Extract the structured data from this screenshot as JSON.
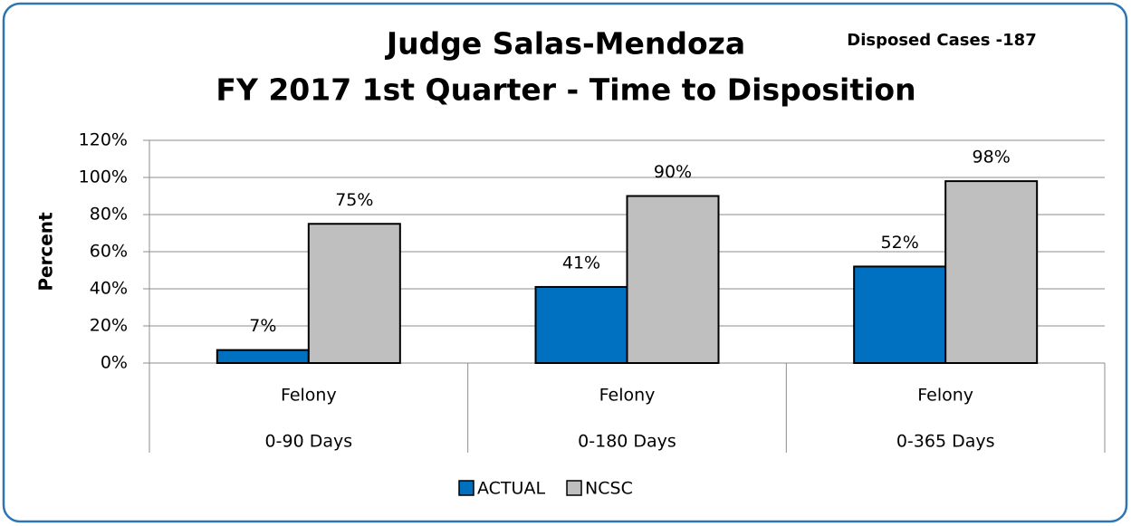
{
  "chart_data": {
    "type": "bar",
    "title": "Judge Salas-Mendoza",
    "subtitle": "FY 2017 1st Quarter - Time to Disposition",
    "annotation": "Disposed Cases -187",
    "y_label": "Percent",
    "categories": [
      [
        "Felony",
        "0-90 Days"
      ],
      [
        "Felony",
        "0-180 Days"
      ],
      [
        "Felony",
        "0-365 Days"
      ]
    ],
    "series": [
      {
        "name": "ACTUAL",
        "color": "#0070c0",
        "values": [
          7,
          41,
          52
        ],
        "value_labels": [
          "7%",
          "41%",
          "52%"
        ]
      },
      {
        "name": "NCSC",
        "color": "#bfbfbf",
        "values": [
          75,
          90,
          98
        ],
        "value_labels": [
          "75%",
          "90%",
          "98%"
        ]
      }
    ],
    "ylim": [
      0,
      120
    ],
    "yticks": [
      {
        "value": 0,
        "label": "0%"
      },
      {
        "value": 20,
        "label": "20%"
      },
      {
        "value": 40,
        "label": "40%"
      },
      {
        "value": 60,
        "label": "60%"
      },
      {
        "value": 80,
        "label": "80%"
      },
      {
        "value": 100,
        "label": "100%"
      },
      {
        "value": 120,
        "label": "120%"
      }
    ],
    "grid": true,
    "legend": "bottom"
  }
}
